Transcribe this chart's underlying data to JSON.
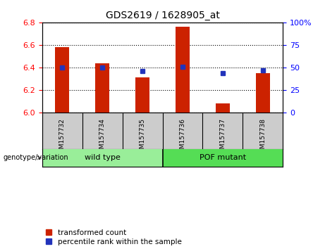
{
  "title": "GDS2619 / 1628905_at",
  "samples": [
    "GSM157732",
    "GSM157734",
    "GSM157735",
    "GSM157736",
    "GSM157737",
    "GSM157738"
  ],
  "red_values": [
    6.58,
    6.44,
    6.31,
    6.76,
    6.08,
    6.35
  ],
  "blue_values": [
    50,
    50,
    46,
    51,
    44,
    47
  ],
  "ylim_left": [
    6.0,
    6.8
  ],
  "ylim_right": [
    0,
    100
  ],
  "yticks_left": [
    6.0,
    6.2,
    6.4,
    6.6,
    6.8
  ],
  "yticks_right": [
    0,
    25,
    50,
    75,
    100
  ],
  "ytick_right_labels": [
    "0",
    "25",
    "50",
    "75",
    "100%"
  ],
  "bar_color": "#cc2200",
  "dot_color": "#2233bb",
  "wild_type_label": "wild type",
  "pof_mutant_label": "POF mutant",
  "genotype_label": "genotype/variation",
  "legend_red": "transformed count",
  "legend_blue": "percentile rank within the sample",
  "bar_width": 0.35,
  "sample_bg_color": "#cccccc",
  "wt_bg_color": "#99ee99",
  "pof_bg_color": "#55dd55",
  "baseline": 6.0,
  "title_fontsize": 10,
  "tick_fontsize": 8,
  "label_fontsize": 8,
  "legend_fontsize": 7.5
}
